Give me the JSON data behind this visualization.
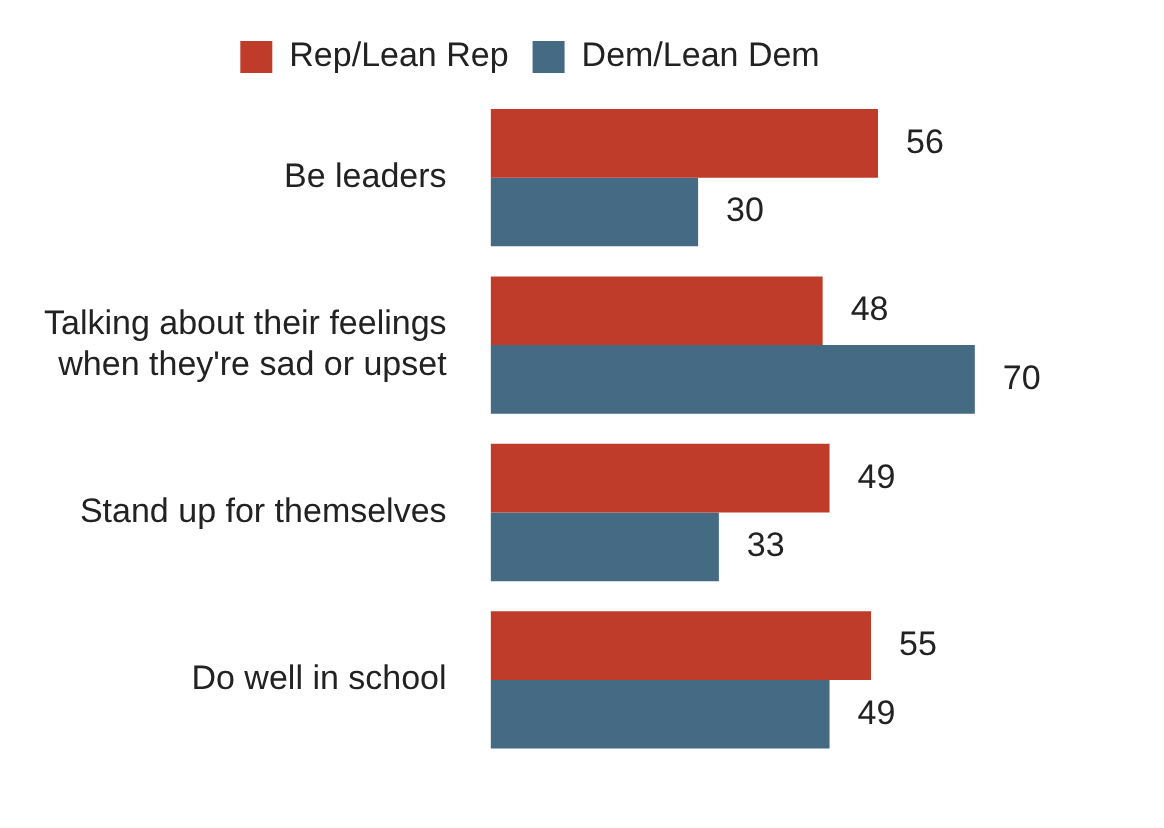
{
  "chart_data": {
    "type": "bar",
    "orientation": "horizontal",
    "categories": [
      "Be leaders",
      "Talking about their feelings when they're sad or upset",
      "Stand up for themselves",
      "Do well in school"
    ],
    "series": [
      {
        "name": "Rep/Lean Rep",
        "color": "#bf3b2a",
        "values": [
          56,
          48,
          49,
          55
        ]
      },
      {
        "name": "Dem/Lean Dem",
        "color": "#446a84",
        "values": [
          30,
          70,
          33,
          49
        ]
      }
    ],
    "data_labels": true,
    "legend": "top"
  }
}
